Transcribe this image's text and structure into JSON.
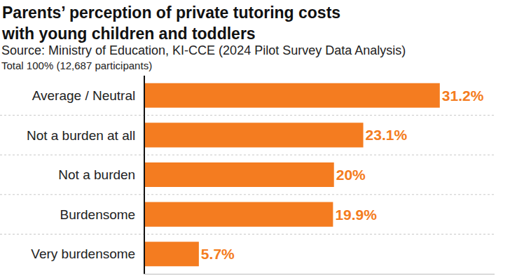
{
  "chart_data": {
    "type": "bar",
    "title": "Parents’ perception of private tutoring costs\nwith young children and toddlers",
    "subtitle": "Source: Ministry of Education, KI-CCE (2024 Pilot Survey Data Analysis)",
    "annotations": [
      "Total 100% (12,687 participants)"
    ],
    "categories": [
      "Average / Neutral",
      "Not a burden at all",
      "Not a burden",
      "Burdensome",
      "Very burdensome"
    ],
    "values": [
      31.2,
      23.1,
      20,
      19.9,
      5.7
    ],
    "value_labels": [
      "31.2%",
      "23.1%",
      "20%",
      "19.9%",
      "5.7%"
    ],
    "color": "#f47c20",
    "orientation": "horizontal",
    "xlim": [
      0,
      37
    ],
    "grid": false,
    "data_labels": true,
    "tick_labels": "y"
  }
}
